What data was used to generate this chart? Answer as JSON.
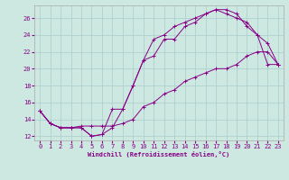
{
  "xlabel": "Windchill (Refroidissement éolien,°C)",
  "background_color": "#cce8e0",
  "line_color": "#880088",
  "grid_color": "#aacccc",
  "xlim": [
    -0.5,
    23.5
  ],
  "ylim": [
    11.5,
    27.5
  ],
  "yticks": [
    12,
    14,
    16,
    18,
    20,
    22,
    24,
    26
  ],
  "xticks": [
    0,
    1,
    2,
    3,
    4,
    5,
    6,
    7,
    8,
    9,
    10,
    11,
    12,
    13,
    14,
    15,
    16,
    17,
    18,
    19,
    20,
    21,
    22,
    23
  ],
  "lines": [
    {
      "x": [
        0,
        1,
        2,
        3,
        4,
        5,
        6,
        7,
        8,
        9,
        10,
        11,
        12,
        13,
        14,
        15,
        16,
        17,
        18,
        19,
        20,
        21,
        22,
        23
      ],
      "y": [
        15,
        13.5,
        13,
        13,
        13,
        12,
        12.2,
        13,
        15.2,
        18,
        21,
        21.5,
        23.5,
        23.5,
        25,
        25.5,
        26.5,
        27,
        27,
        26.5,
        25,
        24,
        20.5,
        20.5
      ]
    },
    {
      "x": [
        0,
        1,
        2,
        3,
        4,
        5,
        6,
        7,
        8,
        9,
        10,
        11,
        12,
        13,
        14,
        15,
        16,
        17,
        18,
        19,
        20,
        21,
        22,
        23
      ],
      "y": [
        15,
        13.5,
        13,
        13,
        13,
        12,
        12.2,
        15.2,
        15.2,
        18,
        21,
        23.5,
        24,
        25,
        25.5,
        26,
        26.5,
        27,
        26.5,
        26,
        25.5,
        24,
        23,
        20.5
      ]
    },
    {
      "x": [
        0,
        1,
        2,
        3,
        4,
        5,
        6,
        7,
        8,
        9,
        10,
        11,
        12,
        13,
        14,
        15,
        16,
        17,
        18,
        19,
        20,
        21,
        22,
        23
      ],
      "y": [
        15,
        13.5,
        13,
        13,
        13.2,
        13.2,
        13.2,
        13.2,
        13.5,
        14,
        15.5,
        16,
        17,
        17.5,
        18.5,
        19,
        19.5,
        20,
        20,
        20.5,
        21.5,
        22,
        22,
        20.5
      ]
    }
  ]
}
